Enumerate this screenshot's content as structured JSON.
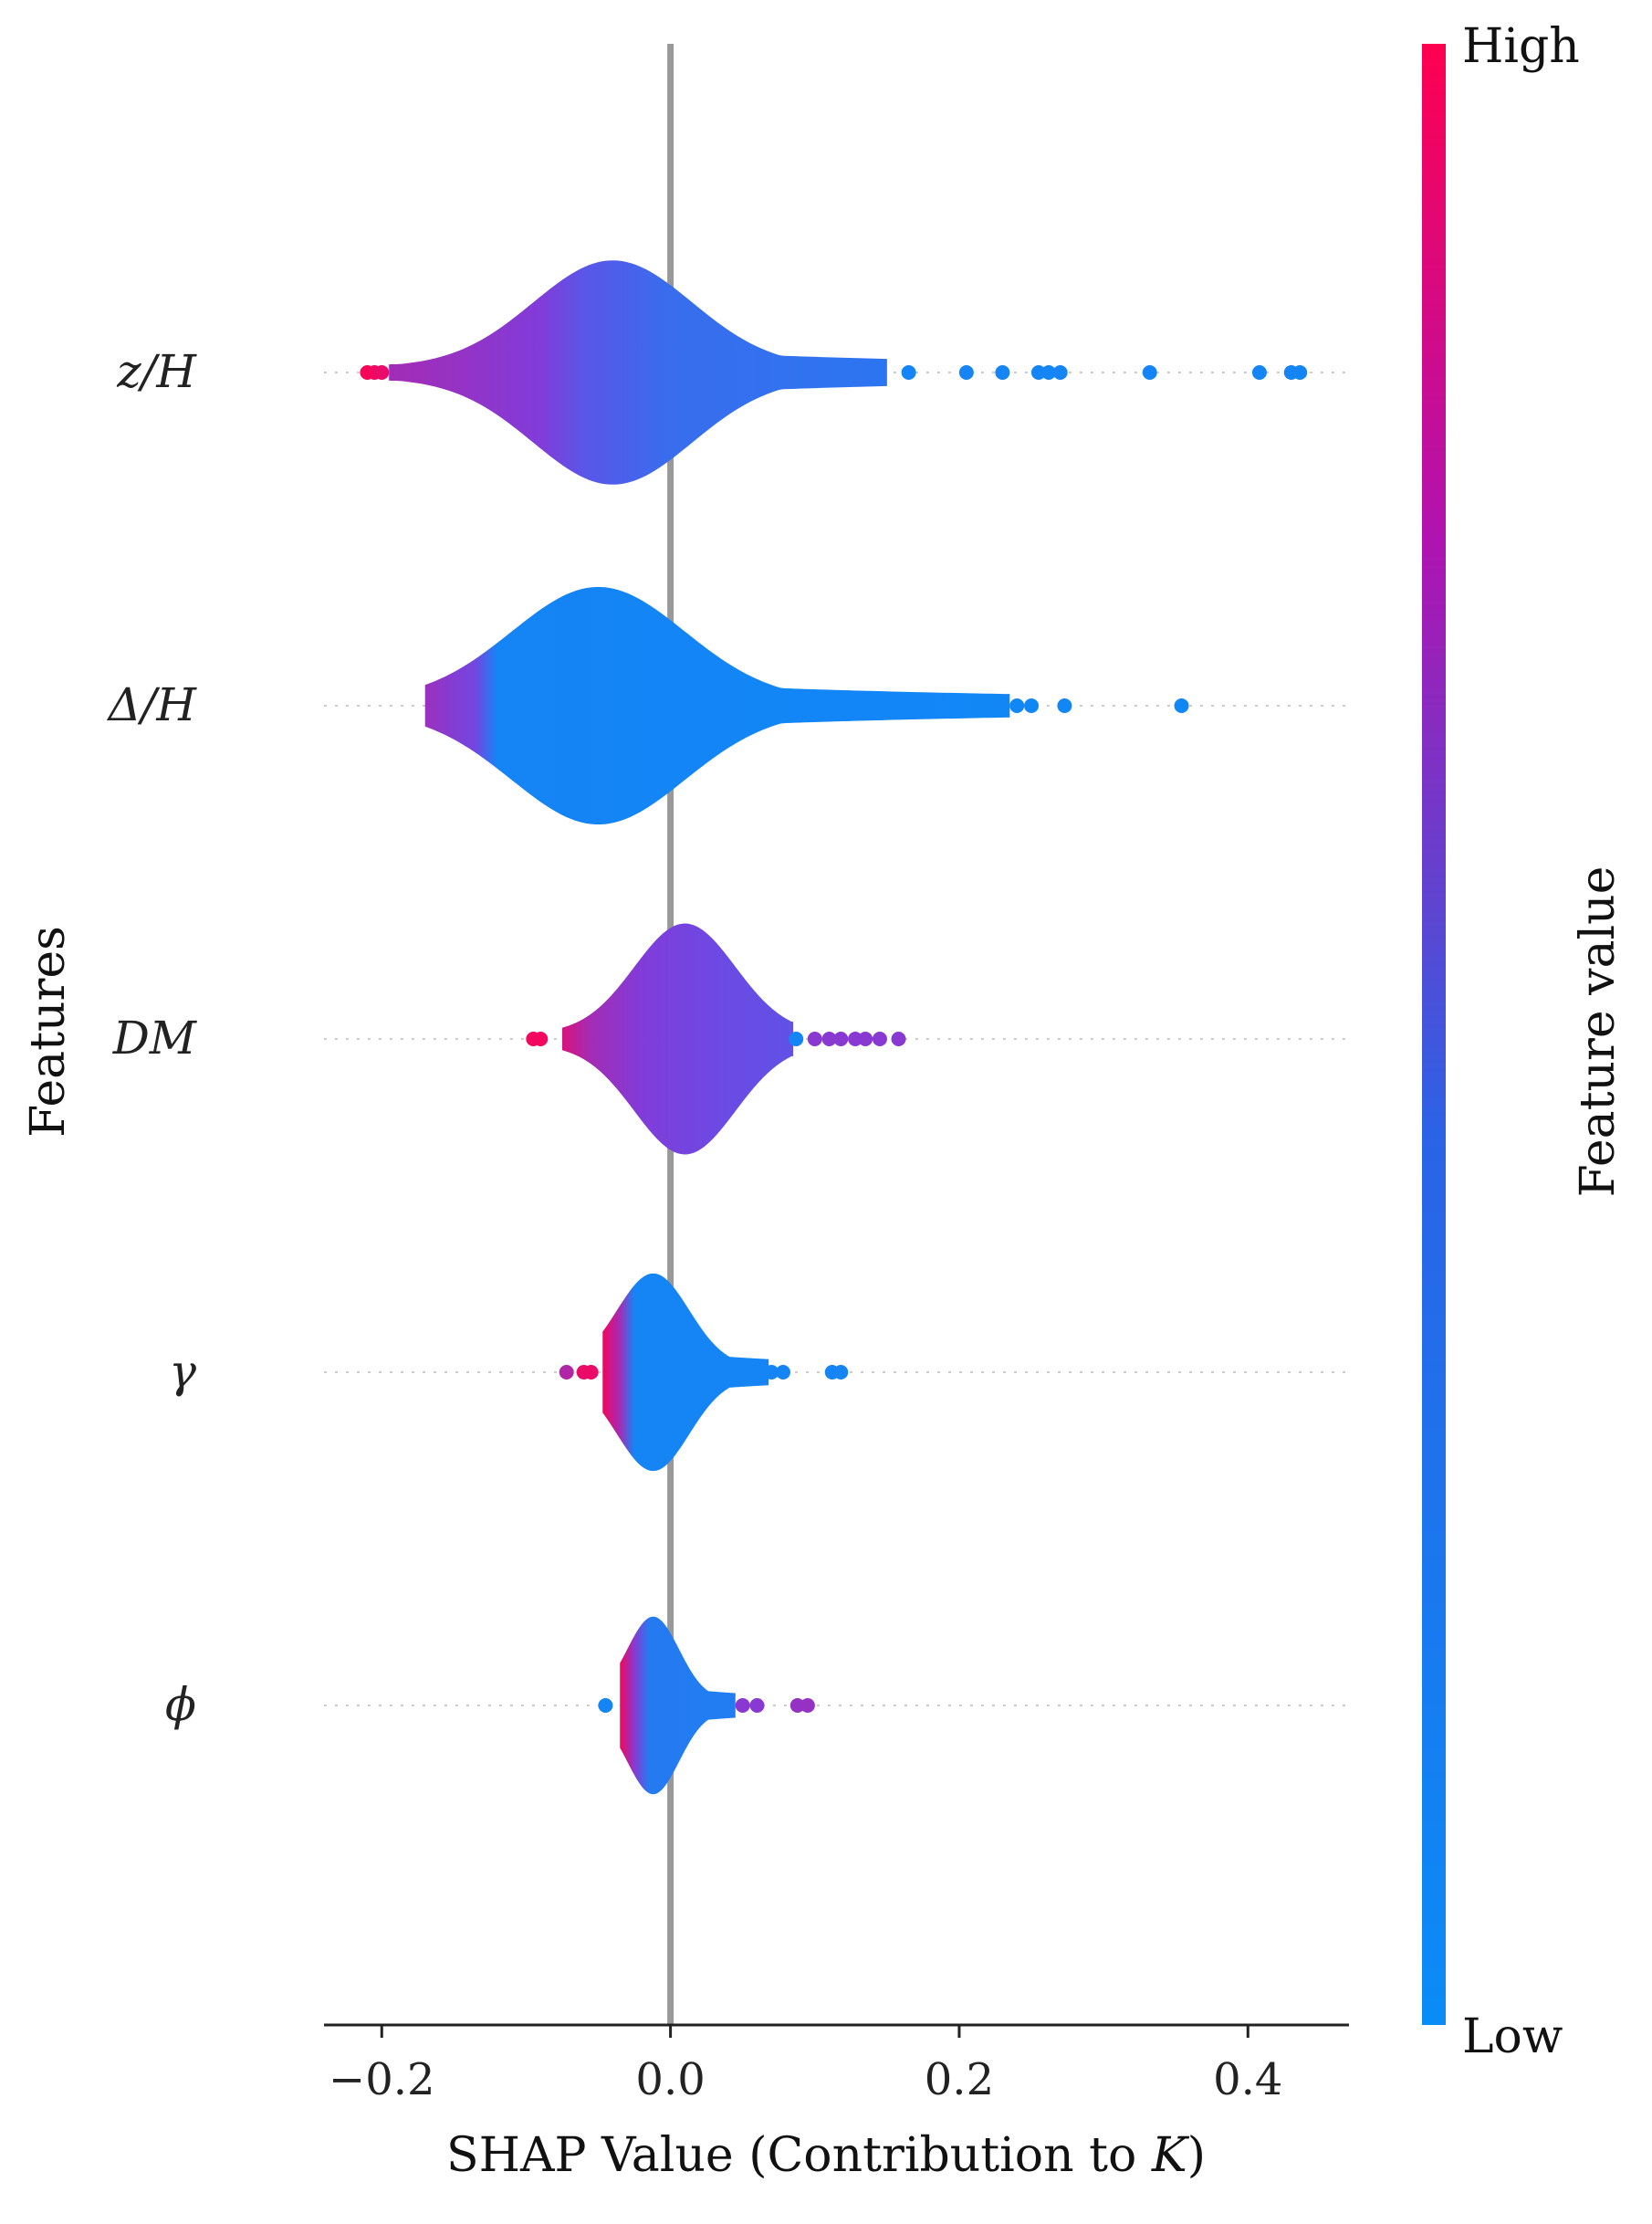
{
  "chart_data": {
    "type": "violin",
    "xlabel_main": "SHAP Value (Contribution to ",
    "xlabel_italic": "K",
    "xlabel_end": ")",
    "ylabel": "Features",
    "xlim": [
      -0.24,
      0.47
    ],
    "xticks": [
      -0.2,
      0.0,
      0.2,
      0.4
    ],
    "xtick_labels": [
      "−0.2",
      "0.0",
      "0.2",
      "0.4"
    ],
    "colorbar": {
      "label": "Feature value",
      "high_label": "High",
      "low_label": "Low",
      "colors": {
        "low": "#0a8cf7",
        "mid": "#7c3fe0",
        "high": "#ff0051"
      }
    },
    "features": [
      {
        "name": "z/H",
        "range": [
          -0.195,
          0.15
        ],
        "peak": -0.04,
        "spread": 0.055,
        "max_half_width": 0.32,
        "color_bands": [
          {
            "x": -0.195,
            "t": 0.65
          },
          {
            "x": -0.15,
            "t": 0.6
          },
          {
            "x": -0.09,
            "t": 0.52
          },
          {
            "x": -0.06,
            "t": 0.35
          },
          {
            "x": 0.0,
            "t": 0.2
          },
          {
            "x": 0.15,
            "t": 0.15
          }
        ],
        "outliers": [
          {
            "x": -0.21,
            "t": 0.98
          },
          {
            "x": -0.205,
            "t": 0.95
          },
          {
            "x": -0.2,
            "t": 0.92
          },
          {
            "x": 0.165,
            "t": 0.05
          },
          {
            "x": 0.205,
            "t": 0.05
          },
          {
            "x": 0.23,
            "t": 0.05
          },
          {
            "x": 0.255,
            "t": 0.05
          },
          {
            "x": 0.262,
            "t": 0.05
          },
          {
            "x": 0.27,
            "t": 0.05
          },
          {
            "x": 0.332,
            "t": 0.05
          },
          {
            "x": 0.408,
            "t": 0.05
          },
          {
            "x": 0.43,
            "t": 0.05
          },
          {
            "x": 0.436,
            "t": 0.05
          }
        ]
      },
      {
        "name": "Δ/H",
        "range": [
          -0.17,
          0.235
        ],
        "peak": -0.05,
        "spread": 0.06,
        "max_half_width": 0.34,
        "color_bands": [
          {
            "x": -0.17,
            "t": 0.62
          },
          {
            "x": -0.135,
            "t": 0.45
          },
          {
            "x": -0.12,
            "t": 0.05
          },
          {
            "x": 0.235,
            "t": 0.03
          }
        ],
        "outliers": [
          {
            "x": 0.24,
            "t": 0.03
          },
          {
            "x": 0.25,
            "t": 0.03
          },
          {
            "x": 0.273,
            "t": 0.03
          },
          {
            "x": 0.354,
            "t": 0.03
          }
        ]
      },
      {
        "name": "DM",
        "range": [
          -0.075,
          0.085
        ],
        "peak": 0.01,
        "spread": 0.035,
        "max_half_width": 0.33,
        "color_bands": [
          {
            "x": -0.075,
            "t": 0.85
          },
          {
            "x": -0.055,
            "t": 0.65
          },
          {
            "x": -0.02,
            "t": 0.52
          },
          {
            "x": 0.04,
            "t": 0.42
          },
          {
            "x": 0.085,
            "t": 0.38
          }
        ],
        "outliers": [
          {
            "x": -0.095,
            "t": 0.95
          },
          {
            "x": -0.09,
            "t": 0.95
          },
          {
            "x": 0.087,
            "t": 0.05
          },
          {
            "x": 0.1,
            "t": 0.55
          },
          {
            "x": 0.11,
            "t": 0.55
          },
          {
            "x": 0.118,
            "t": 0.55
          },
          {
            "x": 0.128,
            "t": 0.55
          },
          {
            "x": 0.135,
            "t": 0.55
          },
          {
            "x": 0.145,
            "t": 0.55
          },
          {
            "x": 0.158,
            "t": 0.55
          }
        ]
      },
      {
        "name": "γ",
        "range": [
          -0.047,
          0.068
        ],
        "peak": -0.012,
        "spread": 0.025,
        "max_half_width": 0.28,
        "color_bands": [
          {
            "x": -0.047,
            "t": 0.95
          },
          {
            "x": -0.035,
            "t": 0.65
          },
          {
            "x": -0.025,
            "t": 0.05
          },
          {
            "x": 0.068,
            "t": 0.05
          }
        ],
        "outliers": [
          {
            "x": -0.072,
            "t": 0.7
          },
          {
            "x": -0.06,
            "t": 0.92
          },
          {
            "x": -0.055,
            "t": 0.92
          },
          {
            "x": 0.07,
            "t": 0.05
          },
          {
            "x": 0.078,
            "t": 0.05
          },
          {
            "x": 0.112,
            "t": 0.05
          },
          {
            "x": 0.118,
            "t": 0.05
          }
        ]
      },
      {
        "name": "ϕ",
        "range": [
          -0.035,
          0.045
        ],
        "peak": -0.012,
        "spread": 0.018,
        "max_half_width": 0.25,
        "color_bands": [
          {
            "x": -0.035,
            "t": 0.95
          },
          {
            "x": -0.025,
            "t": 0.55
          },
          {
            "x": -0.015,
            "t": 0.12
          },
          {
            "x": 0.045,
            "t": 0.1
          }
        ],
        "outliers": [
          {
            "x": -0.045,
            "t": 0.05
          },
          {
            "x": 0.05,
            "t": 0.55
          },
          {
            "x": 0.06,
            "t": 0.55
          },
          {
            "x": 0.088,
            "t": 0.6
          },
          {
            "x": 0.095,
            "t": 0.6
          }
        ]
      }
    ]
  }
}
